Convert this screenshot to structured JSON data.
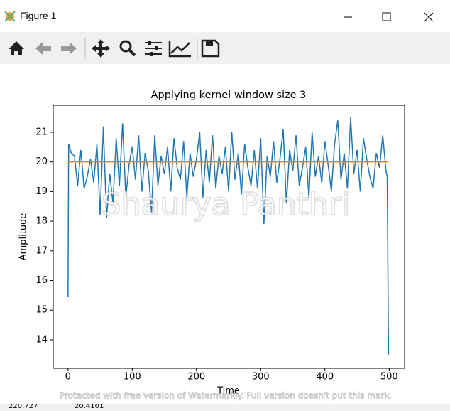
{
  "window": {
    "title": "Figure 1"
  },
  "chart_data": {
    "type": "line",
    "title": "Applying kernel window size 3",
    "x_label": "Time",
    "y_label": "Amplitude",
    "xlim": [
      -23,
      524
    ],
    "ylim": [
      13.04,
      21.91
    ],
    "xticks": [
      0,
      100,
      200,
      300,
      400,
      500
    ],
    "yticks": [
      14,
      15,
      16,
      17,
      18,
      19,
      20,
      21
    ],
    "series": [
      {
        "color": "#1f77b4",
        "x": [
          0,
          1,
          5,
          10,
          15,
          20,
          25,
          30,
          35,
          40,
          45,
          50,
          55,
          60,
          65,
          70,
          75,
          80,
          85,
          90,
          95,
          100,
          105,
          110,
          115,
          120,
          125,
          130,
          135,
          140,
          145,
          150,
          155,
          160,
          165,
          170,
          175,
          180,
          185,
          190,
          195,
          200,
          205,
          210,
          215,
          220,
          225,
          230,
          235,
          240,
          245,
          250,
          255,
          260,
          265,
          270,
          275,
          280,
          285,
          290,
          295,
          300,
          305,
          310,
          315,
          320,
          325,
          330,
          335,
          340,
          345,
          350,
          355,
          360,
          365,
          370,
          375,
          380,
          385,
          390,
          395,
          400,
          405,
          410,
          415,
          420,
          425,
          430,
          435,
          440,
          445,
          450,
          455,
          460,
          465,
          470,
          475,
          480,
          485,
          490,
          495,
          497,
          499
        ],
        "values": [
          15.45,
          20.6,
          20.3,
          20.2,
          19.2,
          20.4,
          19.1,
          19.5,
          20.1,
          19.3,
          20.6,
          18.2,
          21.2,
          18.1,
          19.6,
          18.6,
          20.8,
          19.2,
          21.3,
          18.8,
          19.9,
          20.5,
          19.4,
          20.9,
          19.0,
          20.3,
          19.7,
          18.3,
          20.9,
          19.2,
          20.2,
          19.6,
          20.5,
          19.0,
          20.8,
          19.8,
          19.4,
          20.7,
          18.8,
          20.3,
          19.5,
          20.1,
          21.0,
          18.8,
          20.4,
          19.3,
          20.9,
          19.1,
          20.2,
          19.6,
          20.5,
          19.0,
          21.0,
          19.4,
          20.3,
          18.9,
          20.6,
          19.8,
          19.2,
          20.4,
          19.1,
          20.8,
          17.9,
          20.2,
          19.5,
          20.7,
          19.3,
          20.1,
          21.1,
          18.6,
          20.4,
          19.7,
          20.9,
          19.2,
          19.8,
          20.5,
          18.8,
          21.0,
          19.5,
          20.2,
          19.3,
          20.7,
          19.9,
          19.0,
          20.6,
          21.4,
          19.4,
          20.3,
          19.1,
          21.5,
          19.6,
          20.4,
          19.0,
          20.8,
          20.1,
          19.5,
          19.1,
          20.3,
          19.8,
          20.9,
          19.7,
          19.5,
          13.5
        ]
      },
      {
        "color": "#ff7f0e",
        "x": [
          0,
          499
        ],
        "values": [
          20,
          20
        ]
      }
    ]
  },
  "watermark": "Shaurya Panthri",
  "footer_note": "Protected with free version of Watermarkly. Full version doesn't put this mark.",
  "status": [
    "220.727",
    "20.4101"
  ]
}
